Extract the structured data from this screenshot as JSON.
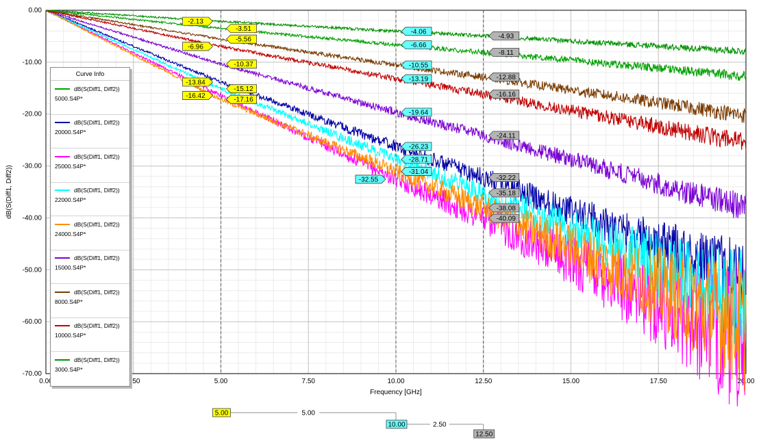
{
  "chart_data": {
    "type": "line",
    "xlabel": "Frequency [GHz]",
    "ylabel": "dB(S(Diff1, Diff2))",
    "xlim": [
      0,
      20
    ],
    "ylim": [
      -70,
      0
    ],
    "x_ticks": [
      "0.00",
      "2.50",
      "5.00",
      "7.50",
      "10.00",
      "12.50",
      "15.00",
      "17.50",
      "20.00"
    ],
    "y_ticks": [
      "0.00",
      "-10.00",
      "-20.00",
      "-30.00",
      "-40.00",
      "-50.00",
      "-60.00",
      "-70.00"
    ],
    "grid": true,
    "legend_position": "left",
    "legend_title": "Curve Info",
    "markers_x": [
      5,
      10,
      12.5
    ],
    "marker_deltas": [
      {
        "start_label": "5.00",
        "value": "5.00",
        "end_label": "10.00"
      },
      {
        "value": "2.50",
        "end_label": "12.50"
      }
    ],
    "series": [
      {
        "expr": "dB(S(Diff1, Diff2))",
        "name": "5000.S4P*",
        "color": "#00a000",
        "x": [
          0,
          5,
          10,
          12.5,
          20
        ],
        "y": [
          0,
          -3.51,
          -6.66,
          -8.11,
          -12.7
        ]
      },
      {
        "expr": "dB(S(Diff1, Diff2))",
        "name": "20000.S4P*",
        "color": "#0000a8",
        "x": [
          0,
          5,
          10,
          12.5,
          20
        ],
        "y": [
          0,
          -13.84,
          -26.23,
          -32.22,
          -51.5
        ]
      },
      {
        "expr": "dB(S(Diff1, Diff2))",
        "name": "25000.S4P*",
        "color": "#ff00ff",
        "x": [
          0,
          5,
          10,
          12.5,
          20
        ],
        "y": [
          0,
          -16.42,
          -32.55,
          -40.09,
          -64
        ]
      },
      {
        "expr": "dB(S(Diff1, Diff2))",
        "name": "22000.S4P*",
        "color": "#00ffff",
        "x": [
          0,
          5,
          10,
          12.5,
          20
        ],
        "y": [
          0,
          -15.12,
          -28.71,
          -35.18,
          -56
        ]
      },
      {
        "expr": "dB(S(Diff1, Diff2))",
        "name": "24000.S4P*",
        "color": "#ff8c00",
        "x": [
          0,
          5,
          10,
          12.5,
          20
        ],
        "y": [
          0,
          -17.16,
          -31.04,
          -38.08,
          -61
        ]
      },
      {
        "expr": "dB(S(Diff1, Diff2))",
        "name": "15000.S4P*",
        "color": "#7b00d4",
        "x": [
          0,
          5,
          10,
          12.5,
          20
        ],
        "y": [
          0,
          -10.37,
          -19.64,
          -24.11,
          -38
        ]
      },
      {
        "expr": "dB(S(Diff1, Diff2))",
        "name": "8000.S4P*",
        "color": "#7a3b00",
        "x": [
          0,
          5,
          10,
          12.5,
          20
        ],
        "y": [
          0,
          -5.56,
          -10.55,
          -12.88,
          -20.3
        ]
      },
      {
        "expr": "dB(S(Diff1, Diff2))",
        "name": "10000.S4P*",
        "color": "#c00000",
        "x": [
          0,
          5,
          10,
          12.5,
          20
        ],
        "y": [
          0,
          -6.96,
          -13.19,
          -16.16,
          -25.5
        ]
      },
      {
        "expr": "dB(S(Diff1, Diff2))",
        "name": "3000.S4P*",
        "color": "#009000",
        "x": [
          0,
          5,
          10,
          12.5,
          20
        ],
        "y": [
          0,
          -2.13,
          -4.06,
          -4.93,
          -7.9
        ]
      }
    ],
    "marker_labels": [
      {
        "x": 5,
        "value": "-2.13",
        "fill": "#ffff00",
        "side": "left"
      },
      {
        "x": 5,
        "value": "-3.51",
        "fill": "#ffff00",
        "side": "right"
      },
      {
        "x": 5,
        "value": "-5.56",
        "fill": "#ffff00",
        "side": "right"
      },
      {
        "x": 5,
        "value": "-6.96",
        "fill": "#ffff00",
        "side": "left"
      },
      {
        "x": 5,
        "value": "-10.37",
        "fill": "#ffff00",
        "side": "right"
      },
      {
        "x": 5,
        "value": "-13.84",
        "fill": "#ffff00",
        "side": "left"
      },
      {
        "x": 5,
        "value": "-15.12",
        "fill": "#ffff00",
        "side": "right"
      },
      {
        "x": 5,
        "value": "-16.42",
        "fill": "#ffff00",
        "side": "left"
      },
      {
        "x": 5,
        "value": "-17.16",
        "fill": "#ffff00",
        "side": "right"
      },
      {
        "x": 10,
        "value": "-4.06",
        "fill": "#66ffff",
        "side": "right"
      },
      {
        "x": 10,
        "value": "-6.66",
        "fill": "#66ffff",
        "side": "right"
      },
      {
        "x": 10,
        "value": "-10.55",
        "fill": "#66ffff",
        "side": "right"
      },
      {
        "x": 10,
        "value": "-13.19",
        "fill": "#66ffff",
        "side": "right"
      },
      {
        "x": 10,
        "value": "-19.64",
        "fill": "#66ffff",
        "side": "right"
      },
      {
        "x": 10,
        "value": "-26.23",
        "fill": "#66ffff",
        "side": "right"
      },
      {
        "x": 10,
        "value": "-28.71",
        "fill": "#66ffff",
        "side": "right"
      },
      {
        "x": 10,
        "value": "-31.04",
        "fill": "#66ffff",
        "side": "right"
      },
      {
        "x": 10,
        "value": "-32.55",
        "fill": "#66ffff",
        "side": "left"
      },
      {
        "x": 12.5,
        "value": "-4.93",
        "fill": "#b4b4b4",
        "side": "right"
      },
      {
        "x": 12.5,
        "value": "-8.11",
        "fill": "#b4b4b4",
        "side": "right"
      },
      {
        "x": 12.5,
        "value": "-12.88",
        "fill": "#b4b4b4",
        "side": "right"
      },
      {
        "x": 12.5,
        "value": "-16.16",
        "fill": "#b4b4b4",
        "side": "right"
      },
      {
        "x": 12.5,
        "value": "-24.11",
        "fill": "#b4b4b4",
        "side": "right"
      },
      {
        "x": 12.5,
        "value": "-32.22",
        "fill": "#b4b4b4",
        "side": "right"
      },
      {
        "x": 12.5,
        "value": "-35.18",
        "fill": "#b4b4b4",
        "side": "right"
      },
      {
        "x": 12.5,
        "value": "-38.08",
        "fill": "#b4b4b4",
        "side": "right"
      },
      {
        "x": 12.5,
        "value": "-40.09",
        "fill": "#b4b4b4",
        "side": "right"
      }
    ]
  }
}
